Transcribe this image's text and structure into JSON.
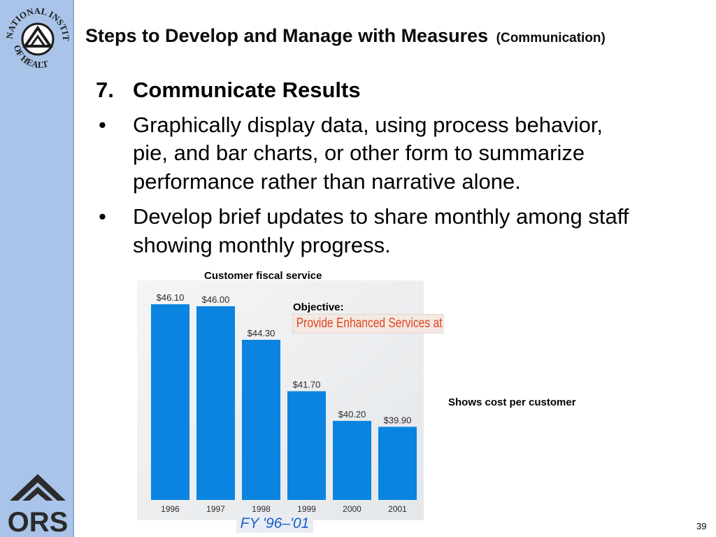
{
  "title": {
    "main": "Steps to Develop and Manage with Measures",
    "sub": "(Communication)"
  },
  "content": {
    "heading_number": "7.",
    "heading": "Communicate Results",
    "bullet_marker": "•",
    "bullet1_lines": [
      "Graphically display data, using process behavior,",
      "pie, and bar charts, or other form to summarize",
      "performance rather than narrative alone."
    ],
    "bullet2_lines": [
      "Develop brief updates to share monthly among staff",
      "showing monthly progress."
    ]
  },
  "sidebar": {
    "logo_top_text_upper": "NATIONAL INSTITUTES",
    "logo_top_text_lower": "OF HEALTH",
    "logo_bottom_text": "ORS"
  },
  "chart_data": {
    "type": "bar",
    "title": "Customer fiscal service",
    "categories": [
      "1996",
      "1997",
      "1998",
      "1999",
      "2000",
      "2001"
    ],
    "values": [
      46.1,
      46.0,
      44.3,
      41.7,
      40.2,
      39.9
    ],
    "value_labels": [
      "$46.10",
      "$46.00",
      "$44.30",
      "$41.70",
      "$40.20",
      "$39.90"
    ],
    "ylim": [
      36.2,
      46.6
    ],
    "grid": false,
    "bar_color": "#0a84e0",
    "annotation_label": "Objective:",
    "annotation_text": "Provide Enhanced Services at a Lower Cost",
    "footer": "FY  '96–'01"
  },
  "caption": "Shows cost per customer",
  "page_number": "39"
}
